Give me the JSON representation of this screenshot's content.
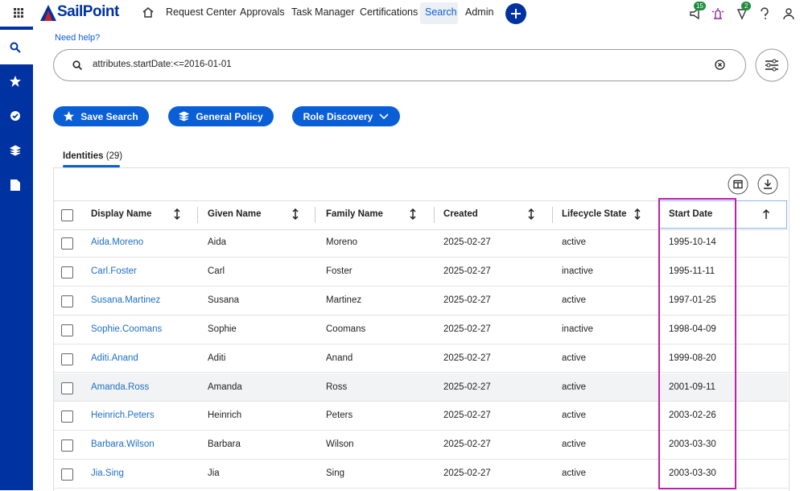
{
  "header": {
    "logo": "SailPoint",
    "nav": [
      "Request Center",
      "Approvals",
      "Task Manager",
      "Certifications",
      "Search",
      "Admin"
    ],
    "badges": [
      15,
      2
    ]
  },
  "help": "Need help?",
  "search": {
    "query": "attributes.startDate:<=2016-01-01"
  },
  "buttons": [
    "Save Search",
    "General Policy",
    "Role Discovery"
  ],
  "tab": {
    "label": "Identities",
    "count": "(29)"
  },
  "table": {
    "columns": [
      "Display Name",
      "Given Name",
      "Family Name",
      "Created",
      "Lifecycle State",
      "Start Date"
    ],
    "rows": [
      [
        "Aida.Moreno",
        "Aida",
        "Moreno",
        "2025-02-27",
        "active",
        "1995-10-14"
      ],
      [
        "Carl.Foster",
        "Carl",
        "Foster",
        "2025-02-27",
        "inactive",
        "1995-11-11"
      ],
      [
        "Susana.Martinez",
        "Susana",
        "Martinez",
        "2025-02-27",
        "active",
        "1997-01-25"
      ],
      [
        "Sophie.Coomans",
        "Sophie",
        "Coomans",
        "2025-02-27",
        "inactive",
        "1998-04-09"
      ],
      [
        "Aditi.Anand",
        "Aditi",
        "Anand",
        "2025-02-27",
        "active",
        "1999-08-20"
      ],
      [
        "Amanda.Ross",
        "Amanda",
        "Ross",
        "2025-02-27",
        "active",
        "2001-09-11"
      ],
      [
        "Heinrich.Peters",
        "Heinrich",
        "Peters",
        "2025-02-27",
        "active",
        "2003-02-26"
      ],
      [
        "Barbara.Wilson",
        "Barbara",
        "Wilson",
        "2025-02-27",
        "active",
        "2003-03-30"
      ],
      [
        "Jia.Sing",
        "Jia",
        "Sing",
        "2025-02-27",
        "active",
        "2003-03-30"
      ]
    ]
  }
}
